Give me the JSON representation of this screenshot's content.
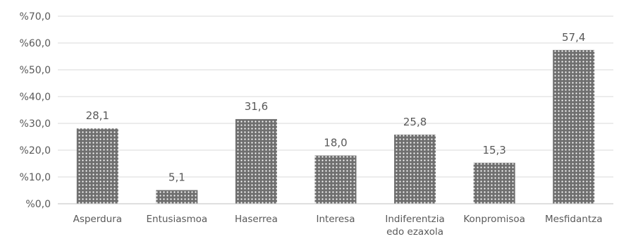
{
  "chart_data": {
    "type": "bar",
    "title": "",
    "xlabel": "",
    "ylabel": "",
    "ylim": [
      0,
      70
    ],
    "y_ticks": [
      "%0,0",
      "%10,0",
      "%20,0",
      "%30,0",
      "%40,0",
      "%50,0",
      "%60,0",
      "%70,0"
    ],
    "grid": true,
    "legend": "none",
    "categories": [
      [
        "Asperdura"
      ],
      [
        "Entusiasmoa"
      ],
      [
        "Haserrea"
      ],
      [
        "Interesa"
      ],
      [
        "Indiferentzia",
        "edo ezaxola"
      ],
      [
        "Konpromisoa"
      ],
      [
        "Mesfidantza"
      ]
    ],
    "values": [
      28.1,
      5.1,
      31.6,
      18.0,
      25.8,
      15.3,
      57.4
    ],
    "data_labels": [
      "28,1",
      "5,1",
      "31,6",
      "18,0",
      "25,8",
      "15,3",
      "57,4"
    ],
    "colors": {
      "bar_fill": "#6f6f6f",
      "bar_dots": "#ffffff",
      "grid": "#d9d9d9",
      "axis": "#bfbfbf",
      "text": "#595959"
    }
  }
}
